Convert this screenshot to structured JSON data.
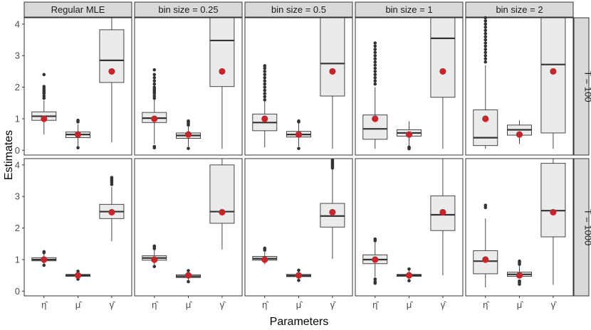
{
  "chart_data": {
    "type": "boxplot",
    "xlabel": "Parameters",
    "ylabel": "Estimates",
    "ylim": [
      -0.15,
      4.2
    ],
    "yticks": [
      "0",
      "1",
      "2",
      "3",
      "4"
    ],
    "categories": [
      "η̂",
      "μ̂",
      "γ̂"
    ],
    "column_facets": [
      "Regular MLE",
      "bin size = 0.25",
      "bin size = 0.5",
      "bin size = 1",
      "bin size = 2"
    ],
    "row_facets": [
      "T = 100",
      "T = 1000"
    ],
    "true_values": [
      1,
      0.5,
      2.5
    ],
    "panels": [
      {
        "row": 0,
        "col": 0,
        "boxes": [
          {
            "lw": 0.5,
            "q1": 0.95,
            "med": 1.08,
            "q3": 1.22,
            "uw": 1.58,
            "out": [
              1.65,
              1.72,
              1.8,
              1.85,
              1.9,
              1.96,
              2.02,
              2.4
            ]
          },
          {
            "lw": 0.12,
            "q1": 0.4,
            "med": 0.5,
            "q3": 0.58,
            "uw": 0.82,
            "out": [
              0.08,
              0.9,
              0.95
            ]
          },
          {
            "lw": 0.25,
            "q1": 2.15,
            "med": 2.85,
            "q3": 3.82,
            "uw": 4.2,
            "out": []
          }
        ]
      },
      {
        "row": 0,
        "col": 1,
        "boxes": [
          {
            "lw": 0.2,
            "q1": 0.88,
            "med": 1.02,
            "q3": 1.2,
            "uw": 1.6,
            "out": [
              0.08,
              0.12,
              1.65,
              1.72,
              1.8,
              1.85,
              1.9,
              1.95,
              2.0,
              2.1,
              2.2,
              2.3,
              2.4,
              2.55
            ]
          },
          {
            "lw": 0.12,
            "q1": 0.38,
            "med": 0.47,
            "q3": 0.55,
            "uw": 0.75,
            "out": [
              0.06,
              0.8,
              0.85,
              0.9,
              0.93
            ]
          },
          {
            "lw": 0.05,
            "q1": 2.02,
            "med": 3.48,
            "q3": 4.2,
            "uw": 4.2,
            "out": []
          }
        ]
      },
      {
        "row": 0,
        "col": 2,
        "boxes": [
          {
            "lw": 0.1,
            "q1": 0.62,
            "med": 0.88,
            "q3": 1.15,
            "uw": 1.55,
            "out": [
              1.6,
              1.7,
              1.8,
              1.9,
              2.0,
              2.1,
              2.2,
              2.3,
              2.4,
              2.5,
              2.6,
              2.68
            ]
          },
          {
            "lw": 0.12,
            "q1": 0.42,
            "med": 0.5,
            "q3": 0.6,
            "uw": 0.85,
            "out": [
              0.06,
              0.9,
              0.93
            ]
          },
          {
            "lw": 0.05,
            "q1": 1.72,
            "med": 2.75,
            "q3": 4.2,
            "uw": 4.2,
            "out": []
          }
        ]
      },
      {
        "row": 0,
        "col": 3,
        "boxes": [
          {
            "lw": 0.05,
            "q1": 0.35,
            "med": 0.68,
            "q3": 1.12,
            "uw": 2.0,
            "out": [
              2.1,
              2.2,
              2.3,
              2.4,
              2.5,
              2.6,
              2.7,
              2.8,
              2.9,
              3.0,
              3.1,
              3.2,
              3.3,
              3.4
            ]
          },
          {
            "lw": 0.15,
            "q1": 0.45,
            "med": 0.55,
            "q3": 0.65,
            "uw": 0.92,
            "out": [
              0.05,
              0.08,
              0.1
            ]
          },
          {
            "lw": 0.05,
            "q1": 1.68,
            "med": 3.55,
            "q3": 4.2,
            "uw": 4.2,
            "out": []
          }
        ]
      },
      {
        "row": 0,
        "col": 4,
        "boxes": [
          {
            "lw": 0.05,
            "q1": 0.15,
            "med": 0.4,
            "q3": 1.28,
            "uw": 2.7,
            "out": [
              2.8,
              2.9,
              3.0,
              3.1,
              3.2,
              3.3,
              3.4,
              3.5,
              3.6,
              3.7,
              3.8,
              3.9,
              4.0,
              4.1,
              4.2
            ]
          },
          {
            "lw": 0.2,
            "q1": 0.48,
            "med": 0.65,
            "q3": 0.8,
            "uw": 0.95,
            "out": []
          },
          {
            "lw": 0.05,
            "q1": 0.55,
            "med": 2.72,
            "q3": 4.2,
            "uw": 4.2,
            "out": []
          }
        ]
      },
      {
        "row": 1,
        "col": 0,
        "boxes": [
          {
            "lw": 0.85,
            "q1": 0.96,
            "med": 1.0,
            "q3": 1.06,
            "uw": 1.18,
            "out": [
              0.82,
              1.22,
              1.25
            ]
          },
          {
            "lw": 0.42,
            "q1": 0.47,
            "med": 0.5,
            "q3": 0.53,
            "uw": 0.6,
            "out": [
              0.38,
              0.63
            ]
          },
          {
            "lw": 1.58,
            "q1": 2.3,
            "med": 2.52,
            "q3": 2.75,
            "uw": 3.3,
            "out": [
              3.38,
              3.45,
              3.5,
              3.55,
              3.6
            ]
          }
        ]
      },
      {
        "row": 1,
        "col": 1,
        "boxes": [
          {
            "lw": 0.8,
            "q1": 0.98,
            "med": 1.05,
            "q3": 1.12,
            "uw": 1.3,
            "out": [
              0.78,
              1.35,
              1.4,
              1.43
            ]
          },
          {
            "lw": 0.35,
            "q1": 0.43,
            "med": 0.47,
            "q3": 0.52,
            "uw": 0.62,
            "out": [
              0.3,
              0.65
            ]
          },
          {
            "lw": 1.32,
            "q1": 2.15,
            "med": 2.52,
            "q3": 4.0,
            "uw": 4.2,
            "out": []
          }
        ]
      },
      {
        "row": 1,
        "col": 2,
        "boxes": [
          {
            "lw": 0.85,
            "q1": 0.98,
            "med": 1.03,
            "q3": 1.1,
            "uw": 1.25,
            "out": [
              1.3,
              1.36
            ]
          },
          {
            "lw": 0.38,
            "q1": 0.46,
            "med": 0.49,
            "q3": 0.53,
            "uw": 0.62,
            "out": [
              0.34,
              0.66
            ]
          },
          {
            "lw": 1.02,
            "q1": 2.03,
            "med": 2.38,
            "q3": 2.78,
            "uw": 3.85,
            "out": [
              3.9,
              3.95,
              4.0,
              4.05,
              4.1,
              4.15
            ]
          }
        ]
      },
      {
        "row": 1,
        "col": 3,
        "boxes": [
          {
            "lw": 0.45,
            "q1": 0.87,
            "med": 1.0,
            "q3": 1.15,
            "uw": 1.55,
            "out": [
              0.25,
              0.3,
              0.38,
              1.6,
              1.65
            ]
          },
          {
            "lw": 0.38,
            "q1": 0.47,
            "med": 0.5,
            "q3": 0.53,
            "uw": 0.65,
            "out": [
              0.33,
              0.7
            ]
          },
          {
            "lw": 0.5,
            "q1": 1.92,
            "med": 2.42,
            "q3": 3.02,
            "uw": 4.2,
            "out": []
          }
        ]
      },
      {
        "row": 1,
        "col": 4,
        "boxes": [
          {
            "lw": 0.12,
            "q1": 0.55,
            "med": 0.95,
            "q3": 1.28,
            "uw": 2.3,
            "out": [
              2.65,
              2.72
            ]
          },
          {
            "lw": 0.4,
            "q1": 0.47,
            "med": 0.53,
            "q3": 0.6,
            "uw": 0.8,
            "out": [
              0.22,
              0.28,
              0.32,
              0.85,
              0.9,
              0.95
            ]
          },
          {
            "lw": 0.2,
            "q1": 1.72,
            "med": 2.55,
            "q3": 4.05,
            "uw": 4.2,
            "out": []
          }
        ]
      }
    ]
  }
}
